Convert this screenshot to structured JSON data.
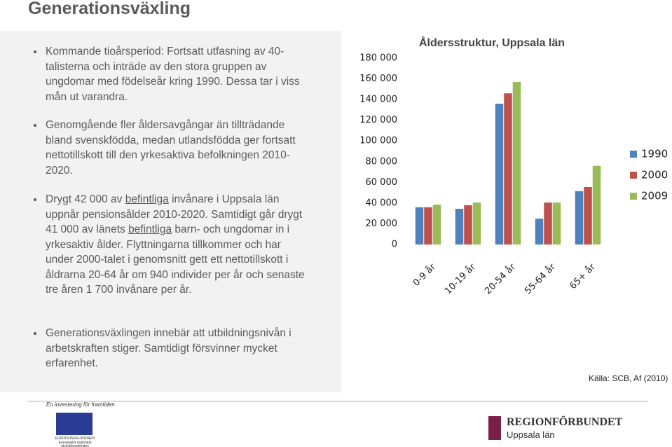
{
  "header": {
    "title": "Generationsväxling"
  },
  "bullets": [
    [
      {
        "text": "Kommande tioårsperiod: Fortsatt utfasning av 40-talisterna och inträde av den stora gruppen av ungdomar med födelseår kring 1990. Dessa tar i viss mån ut varandra."
      }
    ],
    [
      {
        "text": "Genomgående fler åldersavgångar än tillträdande bland svenskfödda, medan utlandsfödda ger fortsatt nettotillskott till den yrkesaktiva befolkningen 2010-2020."
      }
    ],
    [
      {
        "text": "Drygt 42 000 av "
      },
      {
        "text": "befintliga",
        "underline": true
      },
      {
        "text": " invånare i Uppsala län uppnår pensionsålder 2010-2020. Samtidigt går drygt 41 000 av länets "
      },
      {
        "text": "befintliga",
        "underline": true
      },
      {
        "text": " barn- och ungdomar in i yrkesaktiv ålder. Flyttningarna tillkommer och har under 2000-talet i genomsnitt gett ett nettotillskott i åldrarna 20-64 år om 940 individer per år och senaste tre åren 1 700 invånare per år."
      }
    ],
    [
      {
        "text": "Generationsväxlingen innebär att utbildningsnivån i arbetskraften stiger. Samtidigt försvinner mycket erfarenhet."
      }
    ]
  ],
  "chart_data": {
    "type": "bar",
    "title": "Åldersstruktur, Uppsala län",
    "categories": [
      "0-9 år",
      "10-19 år",
      "20-54 år",
      "55-64 år",
      "65+ år"
    ],
    "series": [
      {
        "name": "1990",
        "color": "#4f81bd",
        "values": [
          36000,
          34500,
          136000,
          25000,
          51500
        ]
      },
      {
        "name": "2000",
        "color": "#c0504d",
        "values": [
          36000,
          38000,
          146000,
          40500,
          55500
        ]
      },
      {
        "name": "2009",
        "color": "#9bbb59",
        "values": [
          38500,
          40500,
          157000,
          40500,
          76000
        ]
      }
    ],
    "ylim": [
      0,
      180000
    ],
    "yticks": [
      0,
      {
        "value": 20000,
        "label": "20 000"
      },
      {
        "value": 40000,
        "label": "40 000"
      },
      {
        "value": 60000,
        "label": "60 000"
      },
      {
        "value": 80000,
        "label": "80 000"
      },
      {
        "value": 100000,
        "label": "100 000"
      },
      {
        "value": 120000,
        "label": "120 000"
      },
      {
        "value": 140000,
        "label": "140 000"
      },
      {
        "value": 160000,
        "label": "160 000"
      },
      {
        "value": 180000,
        "label": "180 000"
      }
    ],
    "grid": false,
    "legend": "right"
  },
  "source": "Källa: SCB, Af (2010)",
  "footer": {
    "tagline": "En investering för framtiden",
    "eu_lines": [
      "EUROPEISKA UNIONEN",
      "Europeiska regionala",
      "utvecklingsfonden"
    ],
    "org": "REGIONFÖRBUNDET",
    "org_sub": "Uppsala län"
  }
}
